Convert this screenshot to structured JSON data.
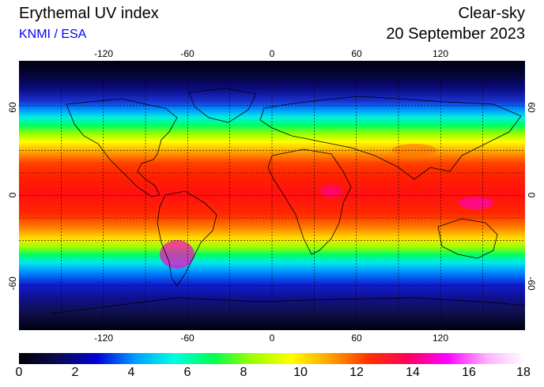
{
  "header": {
    "title": "Erythemal UV index",
    "credit": "KNMI / ESA",
    "sky": "Clear-sky",
    "date": "20 September 2023"
  },
  "axes": {
    "longitude_ticks": [
      "-120",
      "-60",
      "0",
      "60",
      "120"
    ],
    "latitude_ticks": [
      "60",
      "0",
      "-60"
    ]
  },
  "colorbar": {
    "labels": [
      "0",
      "2",
      "4",
      "6",
      "8",
      "10",
      "12",
      "14",
      "16",
      "18"
    ],
    "stops": [
      "#000000",
      "#0a0a55",
      "#0000d8",
      "#00a0ff",
      "#00ffe0",
      "#00ff50",
      "#a0ff00",
      "#ffff00",
      "#ffa000",
      "#ff3000",
      "#ff0060",
      "#ff00ff",
      "#ffb0ff",
      "#ffffff"
    ]
  }
}
